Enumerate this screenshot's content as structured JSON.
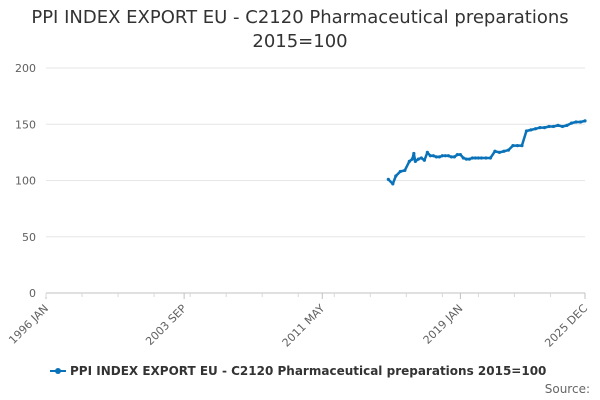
{
  "chart_data": {
    "type": "line",
    "title_line1": "PPI INDEX EXPORT EU - C2120 Pharmaceutical preparations",
    "title_line2": "2015=100",
    "xlabel": "",
    "ylabel": "",
    "ylim": [
      0,
      200
    ],
    "yticks": [
      0,
      50,
      100,
      150,
      200
    ],
    "xlim": [
      "1996-01",
      "2025-12"
    ],
    "xtick_labels": [
      "1996 JAN",
      "2003 SEP",
      "2011 MAY",
      "2019 JAN",
      "2025 DEC"
    ],
    "xtick_values": [
      "1996-01",
      "2003-09",
      "2011-05",
      "2019-01",
      "2025-12"
    ],
    "grid": "horizontal",
    "legend_position": "bottom-left",
    "color": "#0a72b8",
    "series": [
      {
        "name": "PPI INDEX EXPORT EU - C2120 Pharmaceutical preparations 2015=100",
        "x": [
          "2015-01",
          "2015-04",
          "2015-06",
          "2015-09",
          "2015-12",
          "2016-03",
          "2016-05",
          "2016-06",
          "2016-07",
          "2016-09",
          "2016-11",
          "2017-01",
          "2017-03",
          "2017-05",
          "2017-07",
          "2017-09",
          "2017-11",
          "2018-01",
          "2018-03",
          "2018-05",
          "2018-07",
          "2018-09",
          "2018-11",
          "2019-01",
          "2019-03",
          "2019-05",
          "2019-07",
          "2019-09",
          "2019-11",
          "2020-01",
          "2020-03",
          "2020-06",
          "2020-09",
          "2020-12",
          "2021-03",
          "2021-06",
          "2021-09",
          "2021-12",
          "2022-03",
          "2022-06",
          "2022-09",
          "2022-12",
          "2023-03",
          "2023-06",
          "2023-09",
          "2023-12",
          "2024-03",
          "2024-06",
          "2024-09",
          "2024-12",
          "2025-03",
          "2025-06",
          "2025-09",
          "2025-12"
        ],
        "values": [
          101,
          97,
          104,
          108,
          109,
          117,
          119,
          124,
          117,
          119,
          120,
          118,
          125,
          122,
          122,
          121,
          121,
          122,
          122,
          122,
          121,
          121,
          123,
          123,
          120,
          119,
          119,
          120,
          120,
          120,
          120,
          120,
          120,
          126,
          125,
          126,
          127,
          131,
          131,
          131,
          144,
          145,
          146,
          147,
          147,
          148,
          148,
          149,
          148,
          149,
          151,
          152,
          152,
          153
        ]
      }
    ]
  },
  "source_label": "Source:"
}
